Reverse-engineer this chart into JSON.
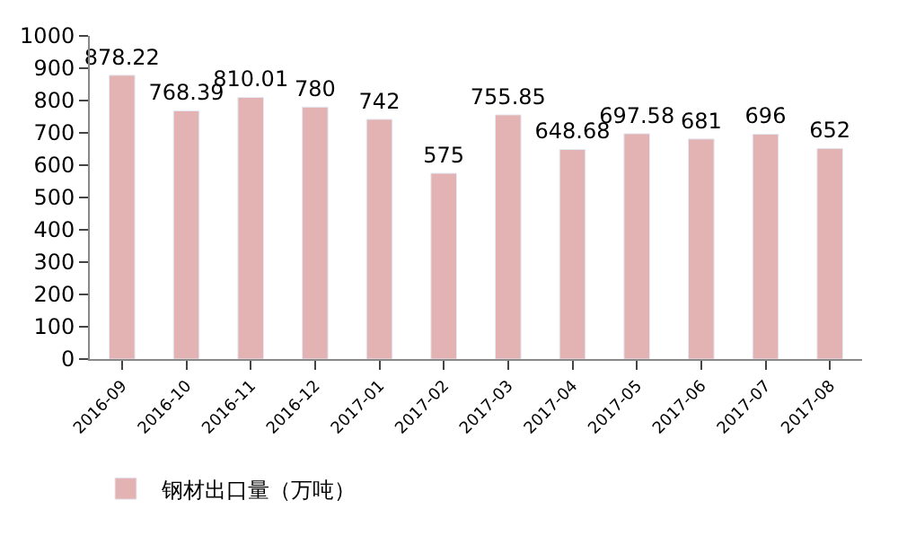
{
  "chart_data": {
    "type": "bar",
    "categories": [
      "2016-09",
      "2016-10",
      "2016-11",
      "2016-12",
      "2017-01",
      "2017-02",
      "2017-03",
      "2017-04",
      "2017-05",
      "2017-06",
      "2017-07",
      "2017-08"
    ],
    "series": [
      {
        "name": "钢材出口量（万吨）",
        "color": "#e3b2b2",
        "values": [
          878.22,
          768.39,
          810.01,
          780,
          742,
          575,
          755.85,
          648.68,
          697.58,
          681,
          696,
          652
        ]
      }
    ],
    "ylim": [
      0,
      1000
    ],
    "yticks": [
      0,
      100,
      200,
      300,
      400,
      500,
      600,
      700,
      800,
      900,
      1000
    ],
    "data_labels": true,
    "legend": "bottom left"
  }
}
